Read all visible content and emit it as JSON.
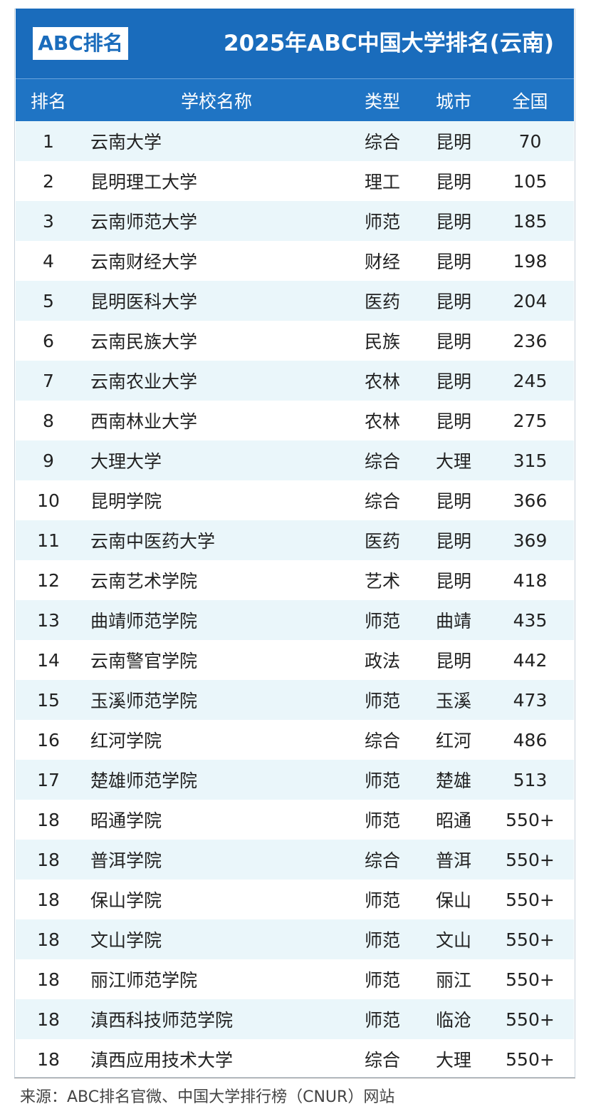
{
  "header": {
    "logo": "ABC排名",
    "title": "2025年ABC中国大学排名(云南)"
  },
  "table": {
    "columns": [
      "排名",
      "学校名称",
      "类型",
      "城市",
      "全国"
    ],
    "rows": [
      [
        1,
        "云南大学",
        "综合",
        "昆明",
        70
      ],
      [
        2,
        "昆明理工大学",
        "理工",
        "昆明",
        105
      ],
      [
        3,
        "云南师范大学",
        "师范",
        "昆明",
        185
      ],
      [
        4,
        "云南财经大学",
        "财经",
        "昆明",
        198
      ],
      [
        5,
        "昆明医科大学",
        "医药",
        "昆明",
        204
      ],
      [
        6,
        "云南民族大学",
        "民族",
        "昆明",
        236
      ],
      [
        7,
        "云南农业大学",
        "农林",
        "昆明",
        245
      ],
      [
        8,
        "西南林业大学",
        "农林",
        "昆明",
        275
      ],
      [
        9,
        "大理大学",
        "综合",
        "大理",
        315
      ],
      [
        10,
        "昆明学院",
        "综合",
        "昆明",
        366
      ],
      [
        11,
        "云南中医药大学",
        "医药",
        "昆明",
        369
      ],
      [
        12,
        "云南艺术学院",
        "艺术",
        "昆明",
        418
      ],
      [
        13,
        "曲靖师范学院",
        "师范",
        "曲靖",
        435
      ],
      [
        14,
        "云南警官学院",
        "政法",
        "昆明",
        442
      ],
      [
        15,
        "玉溪师范学院",
        "师范",
        "玉溪",
        473
      ],
      [
        16,
        "红河学院",
        "综合",
        "红河",
        486
      ],
      [
        17,
        "楚雄师范学院",
        "师范",
        "楚雄",
        513
      ],
      [
        18,
        "昭通学院",
        "师范",
        "昭通",
        "550+"
      ],
      [
        18,
        "普洱学院",
        "综合",
        "普洱",
        "550+"
      ],
      [
        18,
        "保山学院",
        "师范",
        "保山",
        "550+"
      ],
      [
        18,
        "文山学院",
        "师范",
        "文山",
        "550+"
      ],
      [
        18,
        "丽江师范学院",
        "师范",
        "丽江",
        "550+"
      ],
      [
        18,
        "滇西科技师范学院",
        "师范",
        "临沧",
        "550+"
      ],
      [
        18,
        "滇西应用技术大学",
        "综合",
        "大理",
        "550+"
      ]
    ]
  },
  "footer": {
    "source": "来源：ABC排名官微、中国大学排行榜（CNUR）网站"
  }
}
